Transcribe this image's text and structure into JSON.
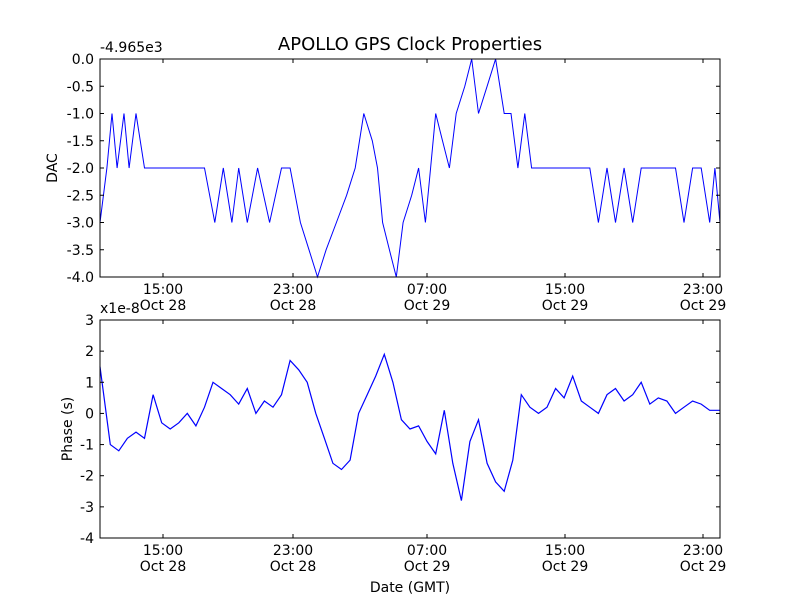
{
  "chart_data": [
    {
      "type": "line",
      "title": "APOLLO GPS Clock Properties",
      "ylabel": "DAC",
      "xlabel": "",
      "offset_label": "-4.965e3",
      "ylim": [
        -4.0,
        0.0
      ],
      "y_ticks": [
        "0.0",
        "-0.5",
        "-1.0",
        "-1.5",
        "-2.0",
        "-2.5",
        "-3.0",
        "-3.5",
        "-4.0"
      ],
      "x_ticks": [
        {
          "time": "15:00",
          "date": "Oct 28"
        },
        {
          "time": "23:00",
          "date": "Oct 28"
        },
        {
          "time": "07:00",
          "date": "Oct 29"
        },
        {
          "time": "15:00",
          "date": "Oct 29"
        },
        {
          "time": "23:00",
          "date": "Oct 29"
        }
      ],
      "x_hours_range": [
        -2.6,
        33.6
      ],
      "color": "#0000ff",
      "grid": false,
      "series": [
        {
          "x": [
            -2.6,
            -2.2,
            -1.9,
            -1.6,
            -1.2,
            -0.9,
            -0.5,
            0.0,
            0.8,
            1.5,
            2.1,
            2.8,
            3.5,
            4.1,
            4.6,
            5.1,
            5.5,
            6.0,
            6.6,
            7.3,
            8.0,
            8.5,
            9.1,
            9.6,
            10.1,
            10.6,
            11.2,
            11.8,
            12.3,
            12.8,
            13.3,
            13.6,
            13.9,
            14.3,
            14.7,
            15.1,
            15.6,
            16.0,
            16.4,
            16.7,
            17.0,
            17.4,
            17.8,
            18.2,
            18.7,
            19.1,
            19.5,
            20.0,
            20.5,
            21.0,
            21.4,
            21.8,
            22.2,
            22.6,
            23.0,
            23.5,
            24.0,
            24.5,
            25.0,
            25.5,
            26.0,
            26.5,
            27.0,
            27.5,
            28.0,
            28.5,
            29.0,
            29.5,
            30.0,
            30.5,
            31.0,
            31.5,
            32.0,
            32.5,
            33.0,
            33.3,
            33.6
          ],
          "y": [
            -3.0,
            -2.0,
            -1.0,
            -2.0,
            -1.0,
            -2.0,
            -1.0,
            -2.0,
            -2.0,
            -2.0,
            -2.0,
            -2.0,
            -2.0,
            -3.0,
            -2.0,
            -3.0,
            -2.0,
            -3.0,
            -2.0,
            -3.0,
            -2.0,
            -2.0,
            -3.0,
            -3.5,
            -4.0,
            -3.5,
            -3.0,
            -2.5,
            -2.0,
            -1.0,
            -1.5,
            -2.0,
            -3.0,
            -3.5,
            -4.0,
            -3.0,
            -2.5,
            -2.0,
            -3.0,
            -2.0,
            -1.0,
            -1.5,
            -2.0,
            -1.0,
            -0.5,
            0.0,
            -1.0,
            -0.5,
            0.0,
            -1.0,
            -1.0,
            -2.0,
            -1.0,
            -2.0,
            -2.0,
            -2.0,
            -2.0,
            -2.0,
            -2.0,
            -2.0,
            -2.0,
            -3.0,
            -2.0,
            -3.0,
            -2.0,
            -3.0,
            -2.0,
            -2.0,
            -2.0,
            -2.0,
            -2.0,
            -3.0,
            -2.0,
            -2.0,
            -3.0,
            -2.0,
            -3.0
          ]
        }
      ]
    },
    {
      "type": "line",
      "title": "",
      "ylabel": "Phase (s)",
      "xlabel": "Date (GMT)",
      "offset_label": "x1e-8",
      "ylim": [
        -4,
        3
      ],
      "y_ticks": [
        "3",
        "2",
        "1",
        "0",
        "-1",
        "-2",
        "-3",
        "-4"
      ],
      "x_ticks": [
        {
          "time": "15:00",
          "date": "Oct 28"
        },
        {
          "time": "23:00",
          "date": "Oct 28"
        },
        {
          "time": "07:00",
          "date": "Oct 29"
        },
        {
          "time": "15:00",
          "date": "Oct 29"
        },
        {
          "time": "23:00",
          "date": "Oct 29"
        }
      ],
      "x_hours_range": [
        -2.6,
        33.6
      ],
      "color": "#0000ff",
      "grid": false,
      "series": [
        {
          "x": [
            -2.6,
            -2.0,
            -1.5,
            -1.0,
            -0.5,
            0.0,
            0.5,
            1.0,
            1.5,
            2.0,
            2.5,
            3.0,
            3.5,
            4.0,
            4.5,
            5.0,
            5.5,
            6.0,
            6.5,
            7.0,
            7.5,
            8.0,
            8.5,
            9.0,
            9.5,
            10.0,
            10.5,
            11.0,
            11.5,
            12.0,
            12.5,
            13.0,
            13.5,
            14.0,
            14.5,
            15.0,
            15.5,
            16.0,
            16.5,
            17.0,
            17.5,
            18.0,
            18.5,
            19.0,
            19.5,
            20.0,
            20.5,
            21.0,
            21.5,
            22.0,
            22.5,
            23.0,
            23.5,
            24.0,
            24.5,
            25.0,
            25.5,
            26.0,
            26.5,
            27.0,
            27.5,
            28.0,
            28.5,
            29.0,
            29.5,
            30.0,
            30.5,
            31.0,
            31.5,
            32.0,
            32.5,
            33.0,
            33.6
          ],
          "y": [
            1.5,
            -1.0,
            -1.2,
            -0.8,
            -0.6,
            -0.8,
            0.6,
            -0.3,
            -0.5,
            -0.3,
            0.0,
            -0.4,
            0.2,
            1.0,
            0.8,
            0.6,
            0.3,
            0.8,
            0.0,
            0.4,
            0.2,
            0.6,
            1.7,
            1.4,
            1.0,
            0.0,
            -0.8,
            -1.6,
            -1.8,
            -1.5,
            0.0,
            0.6,
            1.2,
            1.9,
            1.0,
            -0.2,
            -0.5,
            -0.4,
            -0.9,
            -1.3,
            0.1,
            -1.6,
            -2.8,
            -0.9,
            -0.2,
            -1.6,
            -2.2,
            -2.5,
            -1.5,
            0.6,
            0.2,
            0.0,
            0.2,
            0.8,
            0.5,
            1.2,
            0.4,
            0.2,
            0.0,
            0.6,
            0.8,
            0.4,
            0.6,
            1.0,
            0.3,
            0.5,
            0.4,
            0.0,
            0.2,
            0.4,
            0.3,
            0.1,
            0.1
          ]
        }
      ]
    }
  ]
}
